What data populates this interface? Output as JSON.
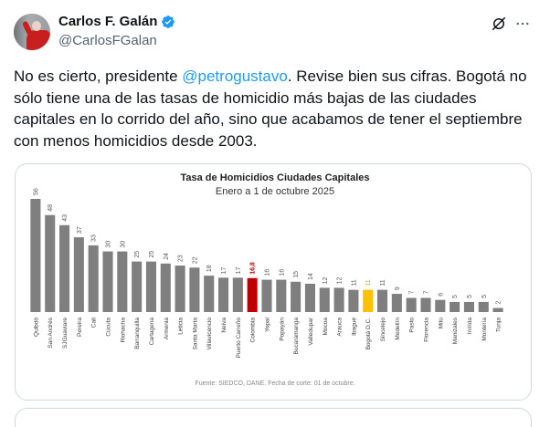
{
  "author": {
    "display_name": "Carlos F. Galán",
    "handle": "@CarlosFGalan",
    "verified": true,
    "avatar_icon": "profile-photo"
  },
  "header_actions": {
    "grok_icon": "grok-icon",
    "more_icon": "more-options-icon"
  },
  "tweet": {
    "text_before_mention": "No es cierto, presidente ",
    "mention": "@petrogustavo",
    "text_after_mention": ". Revise bien sus cifras. Bogotá no sólo tiene una de las tasas de homicidio más bajas de las ciudades capitales en lo corrido del año, sino que acabamos de tener el septiembre con menos homicidios desde 2003."
  },
  "colors": {
    "bar_default": "#7f7f7f",
    "bar_colombia": "#c00000",
    "bar_bogota": "#ffc000",
    "label_colombia": "#c00000",
    "label_bogota": "#e6ac00",
    "label_default": "#595959",
    "mention": "#1d9bf0"
  },
  "chart_data": {
    "type": "bar",
    "title": "Tasa de Homicidios Ciudades Capitales",
    "subtitle": "Enero a 1 de octubre 2025",
    "source": "Fuente: SIEDCO, DANE. Fecha de corte: 01 de octubre.",
    "xlabel": "",
    "ylabel": "",
    "ylim": [
      0,
      56
    ],
    "grid": false,
    "categories": [
      "Quibdó",
      "San Andrés",
      "SJGuaviare",
      "Pereira",
      "Cali",
      "Cúcuta",
      "Riohacha",
      "Barranquilla",
      "Cartagena",
      "Armenia",
      "Leticia",
      "Santa Marta",
      "Villavicencio",
      "Neiva",
      "Puerto Carreño",
      "Colombia",
      "Yopal",
      "Popayán",
      "Bucaramanga",
      "Valledupar",
      "Mocoa",
      "Arauca",
      "Ibagué",
      "Bogotá D.C.",
      "Sincelejo",
      "Medellín",
      "Pasto",
      "Florencia",
      "Mitú",
      "Manizales",
      "Inírida",
      "Montería",
      "Tunja"
    ],
    "values": [
      56,
      48,
      43,
      37,
      33,
      30,
      30,
      25,
      25,
      24,
      23,
      22,
      18,
      17,
      17,
      16.8,
      16,
      16,
      15,
      14,
      12,
      12,
      11,
      11,
      11,
      9,
      7,
      7,
      6,
      5,
      5,
      5,
      2
    ],
    "value_labels": [
      "56",
      "48",
      "43",
      "37",
      "33",
      "30",
      "30",
      "25",
      "25",
      "24",
      "23",
      "22",
      "18",
      "17",
      "17",
      "16,8",
      "16",
      "16",
      "15",
      "14",
      "12",
      "12",
      "11",
      "11",
      "11",
      "9",
      "7",
      "7",
      "6",
      "5",
      "5",
      "5",
      "2"
    ],
    "highlights": {
      "Colombia": "bar_colombia",
      "Bogotá D.C.": "bar_bogota"
    }
  }
}
